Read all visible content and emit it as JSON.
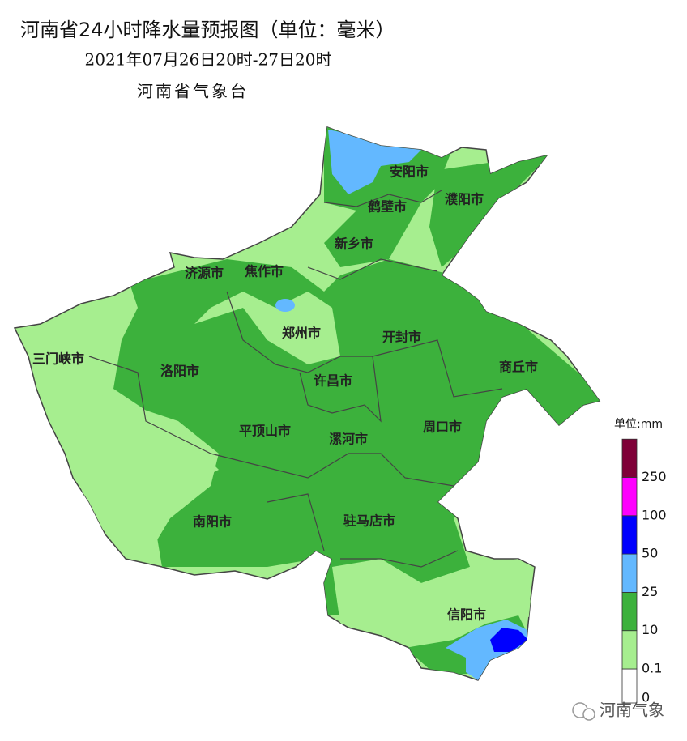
{
  "header": {
    "title": "河南省24小时降水量预报图（单位：毫米）",
    "period": "2021年07月26日20时-27日20时",
    "issuer": "河南省气象台"
  },
  "cities": [
    "安阳市",
    "鹤壁市",
    "濮阳市",
    "新乡市",
    "济源市",
    "焦作市",
    "郑州市",
    "开封市",
    "三门峡市",
    "洛阳市",
    "商丘市",
    "许昌市",
    "平顶山市",
    "漯河市",
    "周口市",
    "南阳市",
    "驻马店市",
    "信阳市"
  ],
  "legend": {
    "unit": "单位:mm",
    "ticks": [
      0,
      0.1,
      10,
      25,
      50,
      100,
      250
    ],
    "colors": [
      "#ffffff",
      "#a6ee8f",
      "#3cb13c",
      "#63b8ff",
      "#0000fe",
      "#fe00fe",
      "#7f0038"
    ]
  },
  "watermark": "河南气象"
}
